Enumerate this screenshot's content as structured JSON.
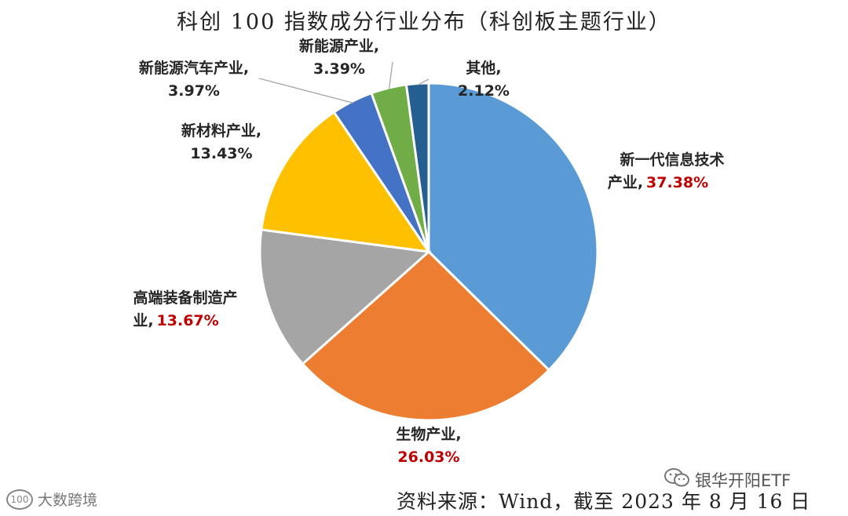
{
  "chart_data": {
    "type": "pie",
    "title": "科创 100 指数成分行业分布（科创板主题行业）",
    "slices": [
      {
        "name": "新一代信息技术产业",
        "value": 37.38,
        "label_lines": [
          "新一代信息技术",
          "产业,"
        ],
        "value_text": "37.38%",
        "color": "#5b9bd5",
        "highlight": true
      },
      {
        "name": "生物产业",
        "value": 26.03,
        "label_lines": [
          "生物产业,"
        ],
        "value_text": "26.03%",
        "color": "#ed7d31",
        "highlight": true
      },
      {
        "name": "高端装备制造产业",
        "value": 13.67,
        "label_lines": [
          "高端装备制造产",
          "业,"
        ],
        "value_text": "13.67%",
        "color": "#a5a5a5",
        "highlight": true
      },
      {
        "name": "新材料产业",
        "value": 13.43,
        "label_lines": [
          "新材料产业,"
        ],
        "value_text": "13.43%",
        "color": "#ffc000",
        "highlight": false
      },
      {
        "name": "新能源汽车产业",
        "value": 3.97,
        "label_lines": [
          "新能源汽车产业,"
        ],
        "value_text": "3.97%",
        "color": "#4472c4",
        "highlight": false
      },
      {
        "name": "新能源产业",
        "value": 3.39,
        "label_lines": [
          "新能源产业,"
        ],
        "value_text": "3.39%",
        "color": "#70ad47",
        "highlight": false
      },
      {
        "name": "其他",
        "value": 2.12,
        "label_lines": [
          "其他,"
        ],
        "value_text": "2.12%",
        "color": "#255e91",
        "highlight": false
      }
    ],
    "legend": "none",
    "start_angle": "12 o'clock, clockwise"
  },
  "source": "资料来源：Wind，截至 2023 年 8 月 16 日",
  "watermarks": {
    "right": "银华开阳ETF",
    "left": "大数跨境",
    "left_icon": "100"
  }
}
